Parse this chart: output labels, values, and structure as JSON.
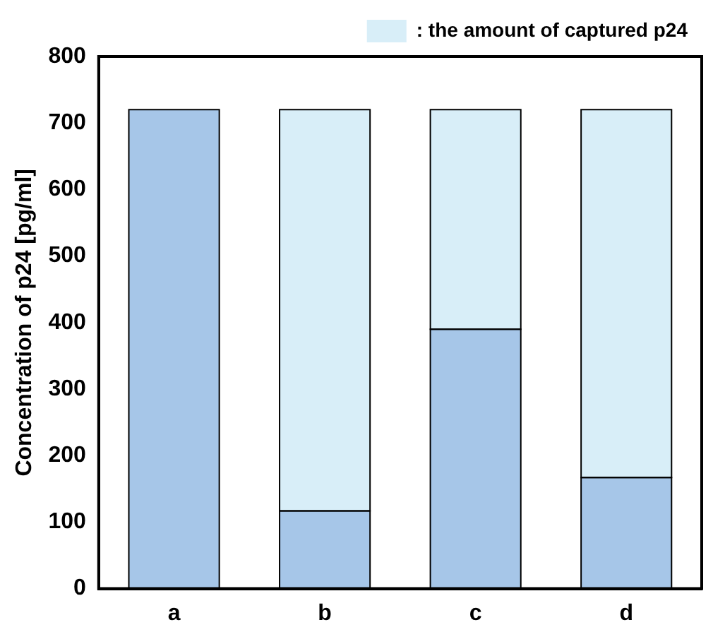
{
  "chart_data": {
    "type": "bar",
    "stacked": true,
    "ylabel": "Concentration of p24 [pg/ml]",
    "categories": [
      "a",
      "b",
      "c",
      "d"
    ],
    "series": [
      {
        "color": "#a6c6e8",
        "values": [
          720,
          117,
          390,
          167
        ]
      },
      {
        "name": ": the amount of captured p24",
        "color": "#d8eef8",
        "values": [
          0,
          603,
          330,
          553
        ]
      }
    ],
    "ylim": [
      0,
      800
    ],
    "yticks": [
      0,
      100,
      200,
      300,
      400,
      500,
      600,
      700,
      800
    ],
    "grid": false,
    "legend": "top right"
  }
}
